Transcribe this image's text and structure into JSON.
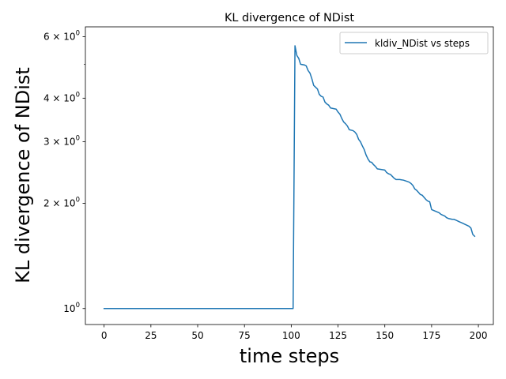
{
  "chart_data": {
    "type": "line",
    "title": "KL divergence of NDist",
    "xlabel": "time steps",
    "ylabel": "KL divergence of NDist",
    "yscale": "log",
    "xlim": [
      -10,
      208
    ],
    "ylim": [
      0.9,
      6.4
    ],
    "x_ticks": [
      0,
      25,
      50,
      75,
      100,
      125,
      150,
      175,
      200
    ],
    "x_tick_labels": [
      "0",
      "25",
      "50",
      "75",
      "100",
      "125",
      "150",
      "175",
      "200"
    ],
    "y_ticks": [
      {
        "value": 1,
        "base": "10",
        "exp": "0"
      },
      {
        "value": 2,
        "mant": "2",
        "base": "10",
        "exp": "0"
      },
      {
        "value": 3,
        "mant": "3",
        "base": "10",
        "exp": "0"
      },
      {
        "value": 4,
        "mant": "4",
        "base": "10",
        "exp": "0"
      },
      {
        "value": 6,
        "mant": "6",
        "base": "10",
        "exp": "0"
      }
    ],
    "y_minor_ticks": [
      5
    ],
    "grid": false,
    "legend_position": "top-right",
    "series": [
      {
        "name": "kldiv_NDist vs steps",
        "color": "#1f77b4",
        "points": [
          [
            0,
            1.0
          ],
          [
            101,
            1.0
          ],
          [
            102,
            5.65
          ],
          [
            103,
            5.3
          ],
          [
            104,
            5.2
          ],
          [
            105,
            5.0
          ],
          [
            107,
            4.98
          ],
          [
            108,
            4.95
          ],
          [
            109,
            4.8
          ],
          [
            110,
            4.72
          ],
          [
            111,
            4.55
          ],
          [
            112,
            4.35
          ],
          [
            113,
            4.3
          ],
          [
            114,
            4.25
          ],
          [
            115,
            4.1
          ],
          [
            116,
            4.05
          ],
          [
            117,
            4.03
          ],
          [
            118,
            3.9
          ],
          [
            119,
            3.85
          ],
          [
            120,
            3.82
          ],
          [
            121,
            3.75
          ],
          [
            123,
            3.73
          ],
          [
            124,
            3.72
          ],
          [
            125,
            3.65
          ],
          [
            126,
            3.6
          ],
          [
            127,
            3.5
          ],
          [
            128,
            3.42
          ],
          [
            129,
            3.38
          ],
          [
            130,
            3.33
          ],
          [
            131,
            3.25
          ],
          [
            133,
            3.23
          ],
          [
            134,
            3.2
          ],
          [
            135,
            3.15
          ],
          [
            136,
            3.05
          ],
          [
            137,
            3.0
          ],
          [
            138,
            2.92
          ],
          [
            139,
            2.85
          ],
          [
            140,
            2.75
          ],
          [
            141,
            2.68
          ],
          [
            142,
            2.63
          ],
          [
            143,
            2.62
          ],
          [
            144,
            2.58
          ],
          [
            145,
            2.55
          ],
          [
            146,
            2.51
          ],
          [
            148,
            2.5
          ],
          [
            150,
            2.49
          ],
          [
            151,
            2.45
          ],
          [
            152,
            2.43
          ],
          [
            153,
            2.42
          ],
          [
            154,
            2.39
          ],
          [
            155,
            2.36
          ],
          [
            156,
            2.34
          ],
          [
            158,
            2.34
          ],
          [
            160,
            2.33
          ],
          [
            162,
            2.31
          ],
          [
            163,
            2.3
          ],
          [
            164,
            2.28
          ],
          [
            165,
            2.25
          ],
          [
            166,
            2.2
          ],
          [
            167,
            2.18
          ],
          [
            168,
            2.15
          ],
          [
            169,
            2.12
          ],
          [
            170,
            2.11
          ],
          [
            171,
            2.08
          ],
          [
            172,
            2.05
          ],
          [
            173,
            2.03
          ],
          [
            174,
            2.02
          ],
          [
            175,
            1.92
          ],
          [
            176,
            1.91
          ],
          [
            177,
            1.9
          ],
          [
            178,
            1.89
          ],
          [
            179,
            1.88
          ],
          [
            180,
            1.86
          ],
          [
            181,
            1.85
          ],
          [
            182,
            1.84
          ],
          [
            183,
            1.82
          ],
          [
            184,
            1.81
          ],
          [
            186,
            1.8
          ],
          [
            187,
            1.8
          ],
          [
            188,
            1.79
          ],
          [
            189,
            1.78
          ],
          [
            190,
            1.77
          ],
          [
            191,
            1.76
          ],
          [
            192,
            1.75
          ],
          [
            193,
            1.74
          ],
          [
            195,
            1.72
          ],
          [
            196,
            1.7
          ],
          [
            197,
            1.63
          ],
          [
            198,
            1.61
          ]
        ]
      }
    ]
  }
}
